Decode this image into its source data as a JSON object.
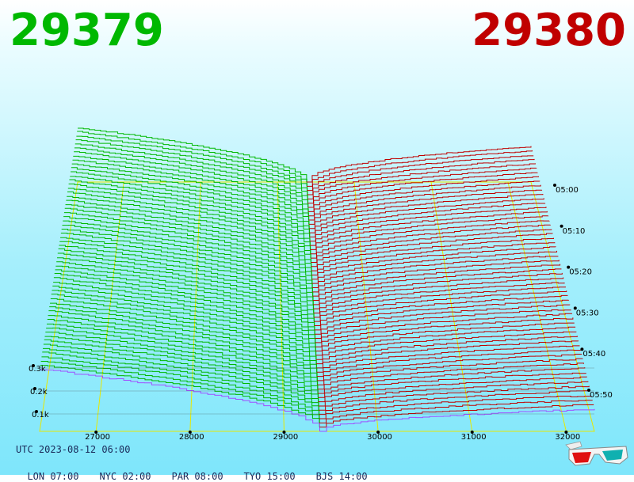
{
  "header": {
    "bid": "29379",
    "ask": "29380",
    "bid_color": "#00b800",
    "ask_color": "#c00000"
  },
  "footer": {
    "utc": "UTC 2023-08-12 06:00",
    "zones": [
      {
        "label": "LON 07:00"
      },
      {
        "label": "NYC 02:00"
      },
      {
        "label": "PAR 08:00"
      },
      {
        "label": "TYO 15:00"
      },
      {
        "label": "BJS 14:00"
      }
    ]
  },
  "icons": {
    "glasses": "3d-glasses-icon"
  },
  "chart_data": {
    "type": "area",
    "description_of_view": "3D order book depth over time",
    "x_ticks": [
      "27000",
      "28000",
      "29000",
      "30000",
      "31000",
      "32000"
    ],
    "x_tick_values": [
      27000,
      28000,
      29000,
      30000,
      31000,
      32000
    ],
    "xlim": [
      26400,
      32300
    ],
    "mid_price": 29379.5,
    "depth_labels": [
      "0.3k",
      "0.2k",
      "0.1k"
    ],
    "depth_values": [
      300,
      200,
      100
    ],
    "time_labels": [
      "05:00",
      "05:10",
      "05:20",
      "05:30",
      "05:40",
      "05:50"
    ],
    "snapshots": 60,
    "bid_depth_at_far_edge_early": 350,
    "ask_depth_at_far_edge_early": 230,
    "bid_depth_at_far_edge_late": 280,
    "ask_depth_at_far_edge_late": 100,
    "bid_color": "#00b800",
    "ask_color": "#c00000",
    "latest_line_color": "#a050ff",
    "grid_color": "#e8e800"
  }
}
